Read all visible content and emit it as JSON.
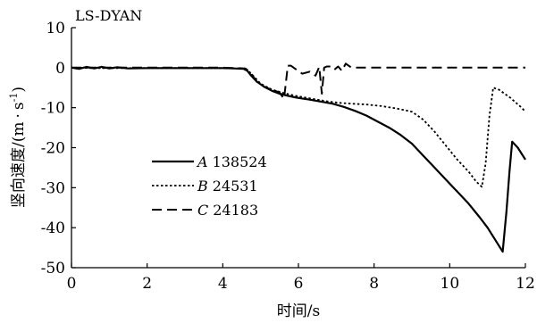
{
  "chart_data": {
    "type": "line",
    "title": "LS-DYAN",
    "xlabel": "时间/s",
    "ylabel": "竖向速度/(m·s⁻¹)",
    "ylabel_main": "竖向速度/(m",
    "ylabel_dot": "·",
    "ylabel_unit": "s",
    "ylabel_exp": "-1",
    "ylabel_close": ")",
    "xlim": [
      0,
      12
    ],
    "ylim": [
      -50,
      10
    ],
    "xticks": [
      0,
      2,
      4,
      6,
      8,
      10,
      12
    ],
    "yticks": [
      10,
      0,
      -10,
      -20,
      -30,
      -40,
      -50
    ],
    "grid": false,
    "legend_position": "left-center",
    "series": [
      {
        "name": "A 138524",
        "letter": "A",
        "id": "138524",
        "style": "solid",
        "x": [
          0,
          0.2,
          0.4,
          0.6,
          0.8,
          1.0,
          1.2,
          1.5,
          2,
          2.5,
          3,
          3.5,
          4,
          4.3,
          4.55,
          4.65,
          4.75,
          4.9,
          5.1,
          5.3,
          5.5,
          5.7,
          5.9,
          6.1,
          6.3,
          6.6,
          6.9,
          7.2,
          7.5,
          7.8,
          8.1,
          8.4,
          8.7,
          9.0,
          9.3,
          9.6,
          9.9,
          10.2,
          10.5,
          10.8,
          11.0,
          11.2,
          11.4,
          11.5,
          11.58,
          11.65,
          11.8,
          12.0
        ],
        "y": [
          0,
          -0.3,
          0.2,
          -0.2,
          0.2,
          -0.2,
          0.1,
          -0.2,
          -0.1,
          -0.1,
          -0.1,
          -0.1,
          -0.1,
          -0.2,
          -0.3,
          -0.8,
          -2.0,
          -3.5,
          -4.8,
          -5.8,
          -6.5,
          -7.0,
          -7.4,
          -7.7,
          -8.0,
          -8.5,
          -9.0,
          -9.8,
          -10.8,
          -12.0,
          -13.5,
          -15.0,
          -16.8,
          -19.0,
          -22.0,
          -25.0,
          -28.0,
          -31.0,
          -34.0,
          -37.5,
          -40.0,
          -43.0,
          -46.0,
          -36.0,
          -26.0,
          -18.5,
          -20.0,
          -23.0
        ]
      },
      {
        "name": "B 24531",
        "letter": "B",
        "id": "24531",
        "style": "dotted",
        "x": [
          0,
          0.5,
          1,
          2,
          3,
          4,
          4.5,
          4.65,
          4.8,
          5.0,
          5.3,
          5.6,
          5.9,
          6.2,
          6.5,
          6.8,
          7.1,
          7.4,
          7.8,
          8.2,
          8.6,
          9.0,
          9.3,
          9.6,
          9.9,
          10.2,
          10.5,
          10.7,
          10.85,
          10.95,
          11.05,
          11.15,
          11.3,
          11.6,
          11.9,
          12.0
        ],
        "y": [
          0,
          -0.1,
          -0.1,
          -0.1,
          -0.1,
          -0.1,
          -0.2,
          -0.5,
          -2.0,
          -4.0,
          -5.5,
          -6.3,
          -7.0,
          -7.5,
          -8.0,
          -8.5,
          -8.8,
          -9.0,
          -9.2,
          -9.6,
          -10.2,
          -11.0,
          -13.0,
          -16.0,
          -19.5,
          -23.0,
          -26.0,
          -28.5,
          -29.8,
          -24.0,
          -12.0,
          -5.0,
          -5.5,
          -7.5,
          -10.0,
          -11.0
        ]
      },
      {
        "name": "C 24183",
        "letter": "C",
        "id": "24183",
        "style": "dashed",
        "x": [
          0,
          1,
          2,
          3,
          4,
          4.6,
          4.75,
          4.9,
          5.1,
          5.3,
          5.5,
          5.62,
          5.72,
          5.8,
          5.95,
          6.1,
          6.3,
          6.45,
          6.55,
          6.62,
          6.68,
          6.75,
          6.85,
          6.95,
          7.05,
          7.15,
          7.25,
          7.4,
          8,
          9,
          10,
          11,
          12
        ],
        "y": [
          0,
          0,
          0,
          0,
          0,
          -0.2,
          -1.5,
          -3.5,
          -4.8,
          -5.5,
          -6.2,
          -7.8,
          0.5,
          0.5,
          -0.5,
          -1.5,
          -1.0,
          -2.0,
          0.2,
          -6.5,
          0.0,
          0.3,
          0.3,
          -0.5,
          0.3,
          -0.8,
          1.0,
          0.0,
          0.0,
          0.0,
          0.0,
          0.0,
          0.0
        ]
      }
    ]
  }
}
